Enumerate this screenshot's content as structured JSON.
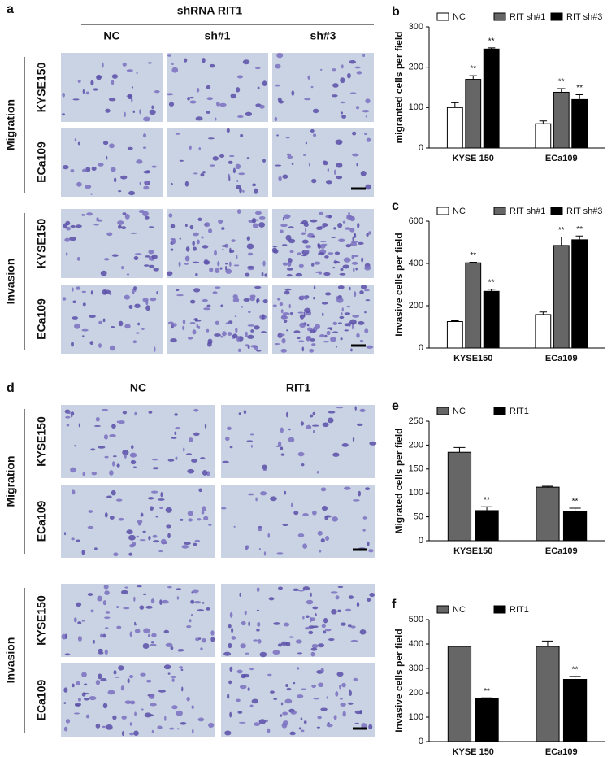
{
  "panel_a": {
    "letter": "a",
    "header": "shRNA RIT1",
    "columns": [
      "NC",
      "sh#1",
      "sh#3"
    ],
    "groups": [
      {
        "name": "Migration",
        "rows": [
          "KYSE150",
          "ECa109"
        ]
      },
      {
        "name": "Invasion",
        "rows": [
          "KYSE150",
          "ECa109"
        ]
      }
    ]
  },
  "panel_d": {
    "letter": "d",
    "columns": [
      "NC",
      "RIT1"
    ],
    "groups": [
      {
        "name": "Migration",
        "rows": [
          "KYSE150",
          "ECa109"
        ]
      },
      {
        "name": "Invasion",
        "rows": [
          "KYSE150",
          "ECa109"
        ]
      }
    ]
  },
  "chart_data": [
    {
      "type": "bar",
      "label": "b",
      "ylabel": "migranted cells per field",
      "categories": [
        "KYSE 150",
        "ECa109"
      ],
      "ylim": [
        0,
        300
      ],
      "yticks": [
        0,
        100,
        200,
        300
      ],
      "grid": false,
      "legend": "top",
      "series": [
        {
          "name": "NC",
          "color": "#ffffff",
          "values": [
            100,
            60
          ],
          "errors": [
            12,
            7
          ]
        },
        {
          "name": "RIT sh#1",
          "color": "#666666",
          "values": [
            170,
            138
          ],
          "errors": [
            9,
            9
          ],
          "annotations": [
            "**",
            "**"
          ]
        },
        {
          "name": "RIT sh#3",
          "color": "#000000",
          "values": [
            245,
            120
          ],
          "errors": [
            3,
            12
          ],
          "annotations": [
            "**",
            "**"
          ]
        }
      ]
    },
    {
      "type": "bar",
      "label": "c",
      "ylabel": "Invasive cells per field",
      "categories": [
        "KYSE150",
        "ECa109"
      ],
      "ylim": [
        0,
        600
      ],
      "yticks": [
        0,
        200,
        400,
        600
      ],
      "grid": false,
      "legend": "top",
      "series": [
        {
          "name": "NC",
          "color": "#ffffff",
          "values": [
            125,
            158
          ],
          "errors": [
            4,
            12
          ]
        },
        {
          "name": "RIT sh#1",
          "color": "#666666",
          "values": [
            403,
            485
          ],
          "errors": [
            3,
            40
          ],
          "annotations": [
            "**",
            "**"
          ]
        },
        {
          "name": "RIT sh#3",
          "color": "#000000",
          "values": [
            268,
            512
          ],
          "errors": [
            10,
            18
          ],
          "annotations": [
            "**",
            "**"
          ]
        }
      ]
    },
    {
      "type": "bar",
      "label": "e",
      "ylabel": "Migrated cells per field",
      "categories": [
        "KYSE150",
        "ECa109"
      ],
      "ylim": [
        0,
        250
      ],
      "yticks": [
        0,
        50,
        100,
        150,
        200,
        250
      ],
      "grid": false,
      "legend": "top",
      "series": [
        {
          "name": "NC",
          "color": "#666666",
          "values": [
            185,
            112
          ],
          "errors": [
            10,
            2
          ]
        },
        {
          "name": "RIT1",
          "color": "#000000",
          "values": [
            63,
            62
          ],
          "errors": [
            8,
            6
          ],
          "annotations": [
            "**",
            "**"
          ]
        }
      ]
    },
    {
      "type": "bar",
      "label": "f",
      "ylabel": "Invasive cells per field",
      "categories": [
        "KYSE 150",
        "ECa109"
      ],
      "ylim": [
        0,
        500
      ],
      "yticks": [
        0,
        100,
        200,
        300,
        400,
        500
      ],
      "grid": false,
      "legend": "top",
      "series": [
        {
          "name": "NC",
          "color": "#666666",
          "values": [
            390,
            390
          ],
          "errors": [
            0,
            22
          ]
        },
        {
          "name": "RIT1",
          "color": "#000000",
          "values": [
            175,
            255
          ],
          "errors": [
            4,
            12
          ],
          "annotations": [
            "**",
            "**"
          ]
        }
      ]
    }
  ]
}
